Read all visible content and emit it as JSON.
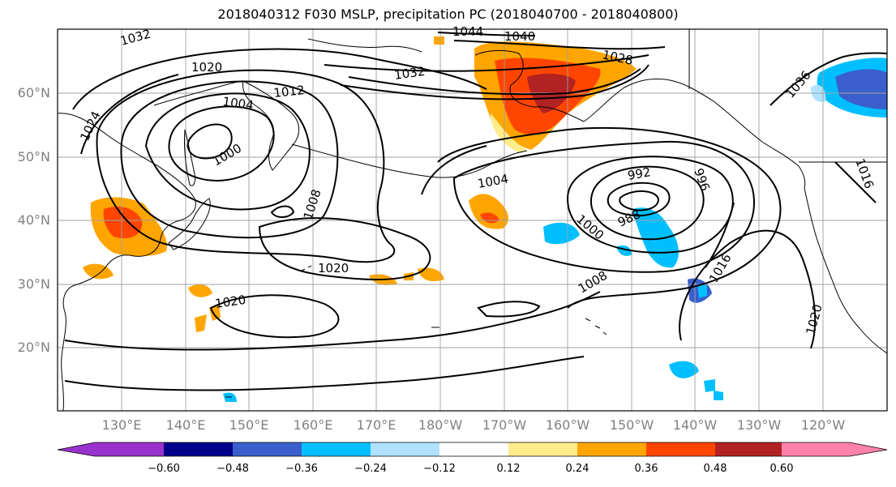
{
  "title": "2018040312 F030 MSLP, precipitation PC (2018040700 - 2018040800)",
  "lat_labels": [
    "60°N",
    "50°N",
    "40°N",
    "30°N",
    "20°N"
  ],
  "lon_labels": [
    "130°E",
    "140°E",
    "150°E",
    "160°E",
    "170°E",
    "180°W",
    "170°W",
    "160°W",
    "150°W",
    "140°W",
    "130°W",
    "120°W"
  ],
  "colorbar": {
    "ticks": [
      "−0.60",
      "−0.48",
      "−0.36",
      "−0.24",
      "−0.12",
      "0.12",
      "0.24",
      "0.36",
      "0.48",
      "0.60"
    ],
    "colors": [
      "#9932cc",
      "#00008b",
      "#3a5fcd",
      "#00bfff",
      "#b0e2ff",
      "#ffffff",
      "#ffec8b",
      "#ffa500",
      "#ff4500",
      "#b22222",
      "#ff82ab"
    ]
  },
  "contour_labels": [
    "1032",
    "1044",
    "1040",
    "1028",
    "1020",
    "1032",
    "1004",
    "1012",
    "1024",
    "1000",
    "1036",
    "1016",
    "1004",
    "992",
    "996",
    "1008",
    "1000",
    "988",
    "1020",
    "1008",
    "1016",
    "1020",
    "1020"
  ],
  "colors": {
    "coast": "#000000",
    "grid": "#a0a0a0",
    "isobar": "#000000"
  }
}
